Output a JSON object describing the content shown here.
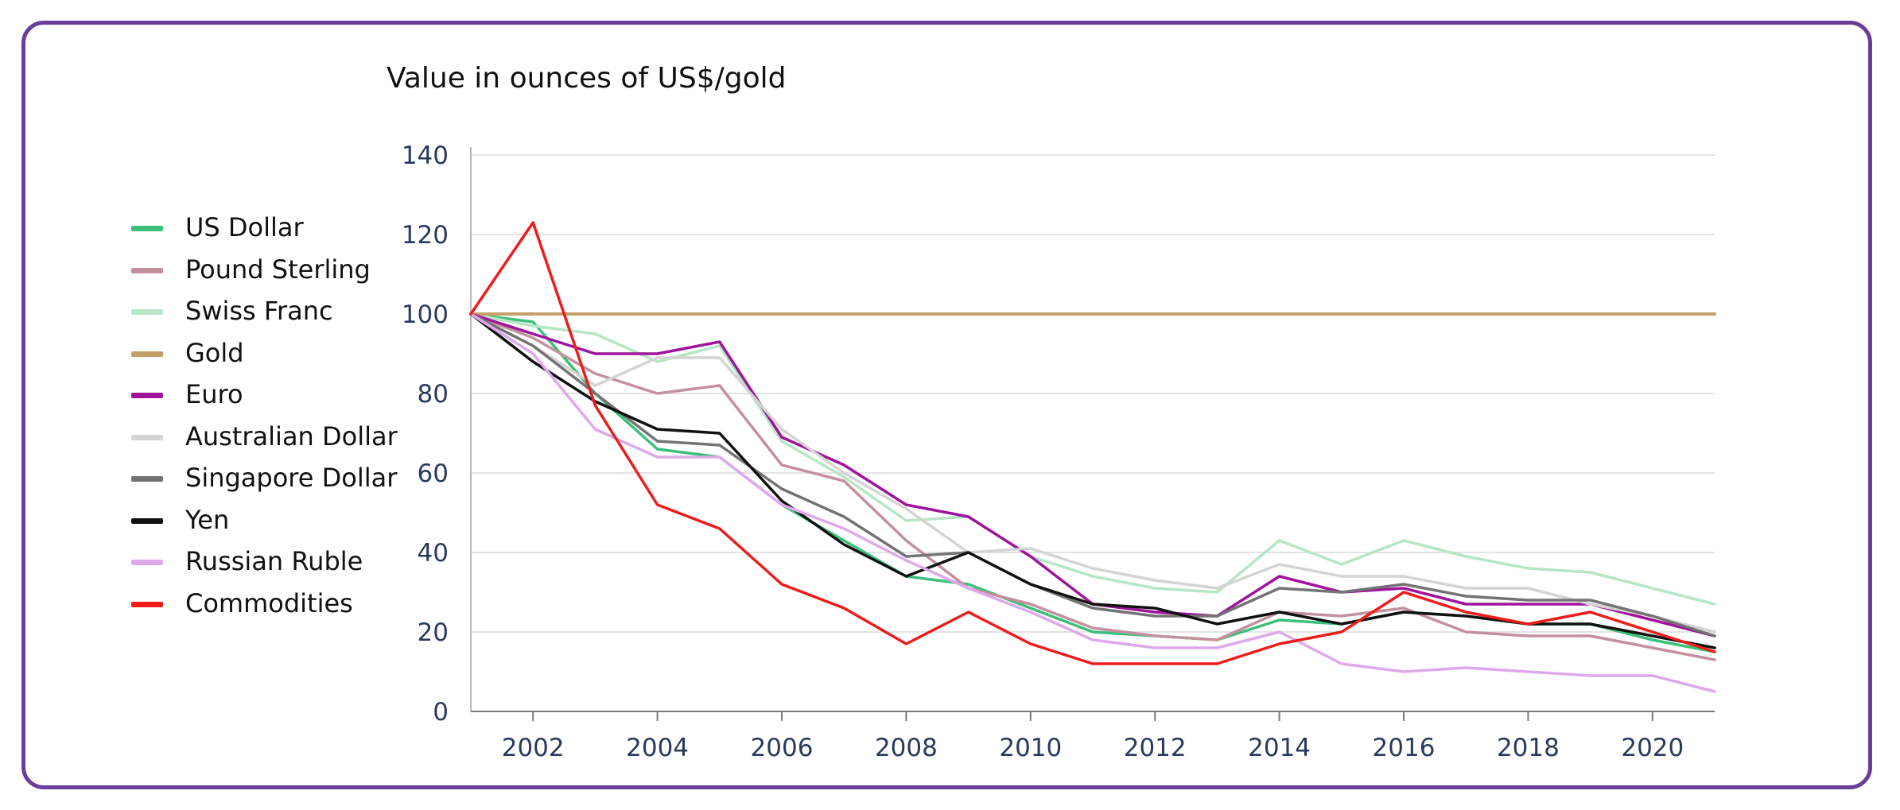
{
  "chart_data": {
    "type": "line",
    "title": "Value in ounces of US$/gold",
    "xlabel": "",
    "ylabel": "",
    "xlim": [
      2001,
      2021
    ],
    "ylim": [
      0,
      140
    ],
    "y_ticks": [
      0,
      20,
      40,
      60,
      80,
      100,
      120,
      140
    ],
    "x_ticks": [
      2002,
      2004,
      2006,
      2008,
      2010,
      2012,
      2014,
      2016,
      2018,
      2020
    ],
    "grid": true,
    "legend_position": "left",
    "x": [
      2001,
      2002,
      2003,
      2004,
      2005,
      2006,
      2007,
      2008,
      2009,
      2010,
      2011,
      2012,
      2013,
      2014,
      2015,
      2016,
      2017,
      2018,
      2019,
      2020,
      2021
    ],
    "series": [
      {
        "name": "US Dollar",
        "color": "#3cbf7a",
        "values": [
          100,
          98,
          80,
          66,
          64,
          52,
          43,
          34,
          32,
          26,
          20,
          19,
          18,
          23,
          22,
          25,
          24,
          22,
          22,
          18,
          15
        ]
      },
      {
        "name": "Pound Sterling",
        "color": "#c4909e",
        "values": [
          100,
          94,
          85,
          80,
          82,
          62,
          58,
          43,
          31,
          27,
          21,
          19,
          18,
          25,
          24,
          26,
          20,
          19,
          19,
          16,
          13
        ]
      },
      {
        "name": "Swiss Franc",
        "color": "#b5e6c6",
        "values": [
          100,
          97,
          95,
          88,
          92,
          68,
          59,
          48,
          49,
          39,
          34,
          31,
          30,
          43,
          37,
          43,
          39,
          36,
          35,
          31,
          27
        ]
      },
      {
        "name": "Gold",
        "color": "#c4a068",
        "values": [
          100,
          100,
          100,
          100,
          100,
          100,
          100,
          100,
          100,
          100,
          100,
          100,
          100,
          100,
          100,
          100,
          100,
          100,
          100,
          100,
          100
        ]
      },
      {
        "name": "Euro",
        "color": "#a0139c",
        "values": [
          100,
          95,
          90,
          90,
          93,
          69,
          62,
          52,
          49,
          39,
          27,
          25,
          24,
          34,
          30,
          31,
          27,
          27,
          27,
          23,
          19
        ]
      },
      {
        "name": "Australian Dollar",
        "color": "#d4d4d4",
        "values": [
          100,
          92,
          82,
          89,
          89,
          71,
          60,
          51,
          40,
          41,
          36,
          33,
          31,
          37,
          34,
          34,
          31,
          31,
          27,
          24,
          20
        ]
      },
      {
        "name": "Singapore Dollar",
        "color": "#737373",
        "values": [
          100,
          92,
          80,
          68,
          67,
          56,
          49,
          39,
          40,
          32,
          26,
          24,
          24,
          31,
          30,
          32,
          29,
          28,
          28,
          24,
          19
        ]
      },
      {
        "name": "Yen",
        "color": "#111111",
        "values": [
          100,
          88,
          78,
          71,
          70,
          53,
          42,
          34,
          40,
          32,
          27,
          26,
          22,
          25,
          22,
          25,
          24,
          22,
          22,
          19,
          16
        ]
      },
      {
        "name": "Russian Ruble",
        "color": "#e0a8ec",
        "values": [
          100,
          90,
          71,
          64,
          64,
          52,
          46,
          38,
          31,
          25,
          18,
          16,
          16,
          20,
          12,
          10,
          11,
          10,
          9,
          9,
          5
        ]
      },
      {
        "name": "Commodities",
        "color": "#ee1c1c",
        "values": [
          100,
          123,
          77,
          52,
          46,
          32,
          26,
          17,
          25,
          17,
          12,
          12,
          12,
          17,
          20,
          30,
          25,
          22,
          25,
          20,
          15
        ]
      }
    ]
  }
}
